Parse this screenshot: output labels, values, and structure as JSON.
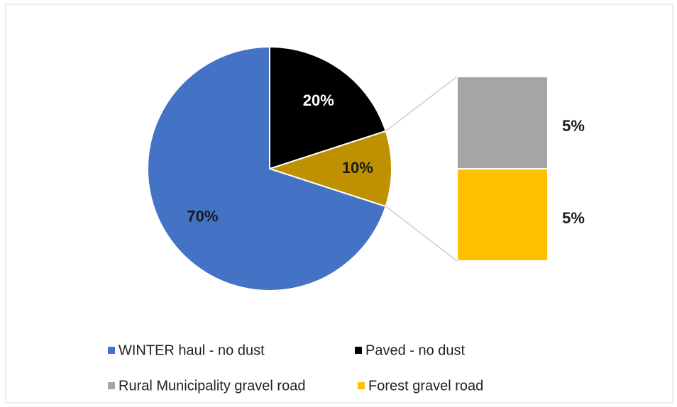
{
  "chart_data": {
    "type": "bar_of_pie",
    "categories": [
      "WINTER haul - no dust",
      "Paved - no dust",
      null
    ],
    "values": [
      70,
      20,
      10
    ],
    "value_labels": [
      "70%",
      "20%",
      "10%"
    ],
    "colors": [
      "#4472c4",
      "#000000",
      "#bf9000"
    ],
    "breakdown": {
      "categories": [
        "Rural Municipality gravel road",
        "Forest gravel road"
      ],
      "values": [
        5,
        5
      ],
      "value_labels": [
        "5%",
        "5%"
      ],
      "colors": [
        "#a5a5a5",
        "#ffc000"
      ]
    },
    "legend": "bottom"
  }
}
